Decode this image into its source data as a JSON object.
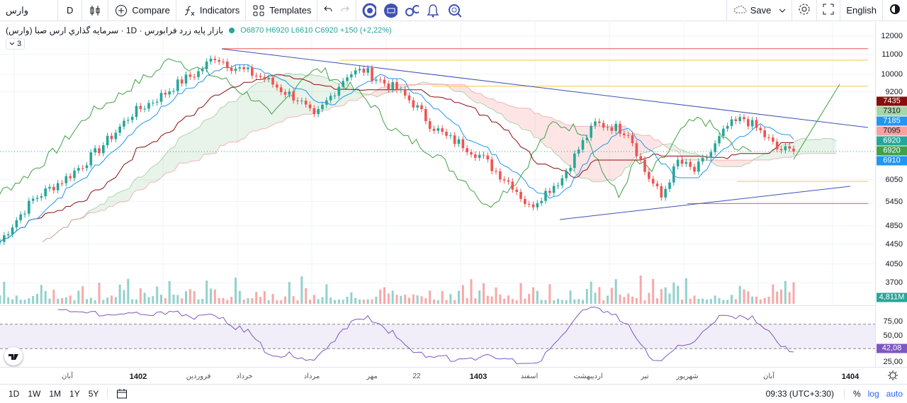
{
  "toolbar": {
    "symbol": "وارس",
    "interval": "D",
    "compare": "Compare",
    "indicators": "Indicators",
    "templates": "Templates",
    "save": "Save",
    "language": "English"
  },
  "legend": {
    "title": "بازار پایه زرد فرابورس · 1D · سرمایه گذاري ارس صبا (وارس)",
    "open": "O6870",
    "high": "H6920",
    "low": "L6610",
    "close": "C6920",
    "change": "+150 (+2,22%)",
    "collapse_count": "3"
  },
  "price_axis": {
    "ticks": [
      "12000",
      "11000",
      "10000",
      "9200",
      "6050",
      "5450",
      "4850",
      "4450",
      "4050",
      "3700"
    ],
    "labels": [
      {
        "v": "7435",
        "c": "#880e0e"
      },
      {
        "v": "7310",
        "c": "#a5d6a7",
        "t": "#131722"
      },
      {
        "v": "7185",
        "c": "#2196f3"
      },
      {
        "v": "7095",
        "c": "#f7a1a1",
        "t": "#131722"
      },
      {
        "v": "6920",
        "c": "#26a69a"
      },
      {
        "v": "6920",
        "c": "#43a047"
      },
      {
        "v": "6910",
        "c": "#2196f3"
      }
    ],
    "volume_label": "4,811M",
    "volume_color": "#26a69a"
  },
  "rsi_axis": {
    "ticks": [
      "75,00",
      "50,00",
      "25,00"
    ],
    "value": "42,08",
    "color": "#7e57c2"
  },
  "time_axis": [
    {
      "l": "آبان",
      "x": 95,
      "b": false
    },
    {
      "l": "1402",
      "x": 195,
      "b": true
    },
    {
      "l": "فروردین",
      "x": 280,
      "b": false
    },
    {
      "l": "خرداد",
      "x": 345,
      "b": false
    },
    {
      "l": "مرداد",
      "x": 440,
      "b": false
    },
    {
      "l": "مهر",
      "x": 525,
      "b": false
    },
    {
      "l": "22",
      "x": 588,
      "b": false
    },
    {
      "l": "1403",
      "x": 675,
      "b": true
    },
    {
      "l": "اسفند",
      "x": 747,
      "b": false
    },
    {
      "l": "اردیبهشت",
      "x": 830,
      "b": false
    },
    {
      "l": "تیر",
      "x": 910,
      "b": false
    },
    {
      "l": "شهریور",
      "x": 970,
      "b": false
    },
    {
      "l": "آبان",
      "x": 1085,
      "b": false
    },
    {
      "l": "1404",
      "x": 1200,
      "b": true
    }
  ],
  "bottom": {
    "ranges": [
      "1D",
      "1W",
      "1M",
      "1Y",
      "5Y"
    ],
    "time": "09:33 (UTC+3:30)",
    "percent": "%",
    "log": "log",
    "auto": "auto"
  },
  "colors": {
    "up": "#26a69a",
    "down": "#ef5350",
    "tenkan": "#2196f3",
    "kijun": "#880e0e",
    "chikou": "#43a047",
    "trend": "#3f51b5",
    "rsi": "#7e57c2"
  },
  "chart_data": {
    "type": "candlestick",
    "scale": "log",
    "ylim": [
      3500,
      12500
    ],
    "close": [
      4500,
      5000,
      5500,
      5800,
      6100,
      6500,
      7000,
      7600,
      8300,
      8700,
      9150,
      9700,
      10100,
      10900,
      10400,
      10100,
      9800,
      9300,
      8900,
      8100,
      9000,
      10000,
      10200,
      9700,
      9300,
      8700,
      7900,
      7400,
      7150,
      6800,
      6300,
      5900,
      5300,
      5700,
      6100,
      7000,
      7900,
      7800,
      7600,
      6300,
      5550,
      6600,
      6300,
      6900,
      7800,
      8100,
      7600,
      7000,
      6920
    ],
    "horizontal_levels": [
      11300,
      10700,
      9450,
      6000,
      5400
    ],
    "rsi_levels": [
      70,
      30
    ]
  }
}
